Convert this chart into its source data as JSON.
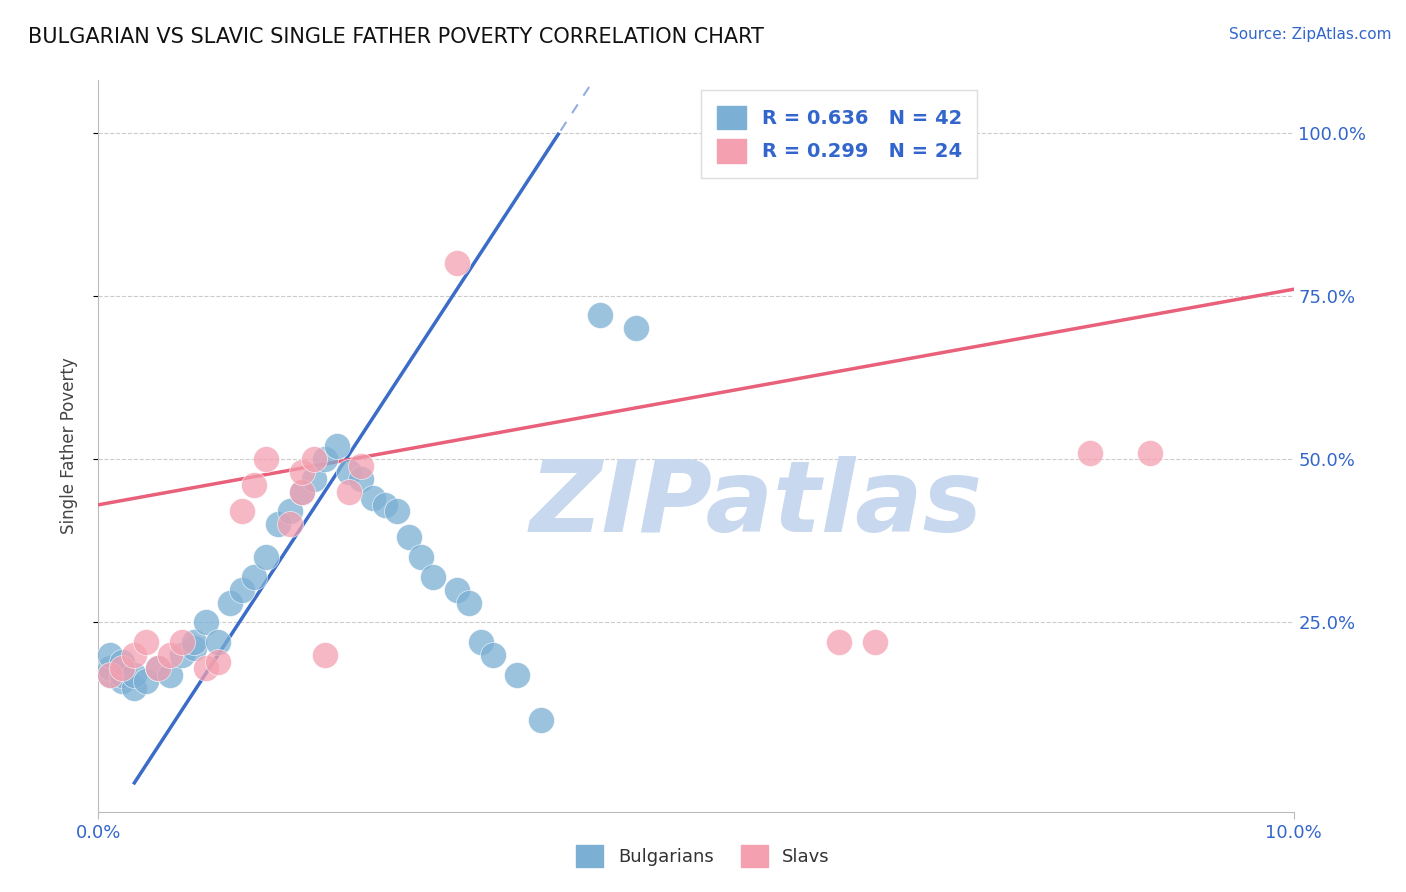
{
  "title": "BULGARIAN VS SLAVIC SINGLE FATHER POVERTY CORRELATION CHART",
  "source_text": "Source: ZipAtlas.com",
  "ylabel": "Single Father Poverty",
  "blue_color": "#7BAFD4",
  "pink_color": "#F4A0B0",
  "blue_line_color": "#3A6CC8",
  "pink_line_color": "#E8607A",
  "bg_color": "#FFFFFF",
  "watermark": "ZIPatlas",
  "watermark_color": "#C8D8EF",
  "legend_top_blue": "R = 0.636   N = 42",
  "legend_top_pink": "R = 0.299   N = 24",
  "legend_bottom_blue": "Bulgarians",
  "legend_bottom_pink": "Slavs",
  "xlim": [
    0.0,
    0.1
  ],
  "ylim": [
    0.0,
    1.05
  ],
  "ytick_vals": [
    0.25,
    0.5,
    0.75,
    1.0
  ],
  "ytick_labels": [
    "25.0%",
    "50.0%",
    "75.0%",
    "100.0%"
  ],
  "xtick_vals": [
    0.0,
    0.1
  ],
  "xtick_labels": [
    "0.0%",
    "10.0%"
  ],
  "blue_regress_slope": 28.0,
  "blue_regress_intercept": -0.08,
  "pink_regress_slope": 3.3,
  "pink_regress_intercept": 0.43,
  "blue_points_x": [
    0.001,
    0.001,
    0.001,
    0.002,
    0.002,
    0.002,
    0.003,
    0.003,
    0.004,
    0.005,
    0.006,
    0.007,
    0.008,
    0.008,
    0.009,
    0.01,
    0.011,
    0.012,
    0.013,
    0.014,
    0.015,
    0.016,
    0.017,
    0.018,
    0.019,
    0.02,
    0.021,
    0.022,
    0.023,
    0.024,
    0.025,
    0.026,
    0.027,
    0.028,
    0.03,
    0.031,
    0.032,
    0.033,
    0.035,
    0.037,
    0.042,
    0.045
  ],
  "blue_points_y": [
    0.17,
    0.18,
    0.2,
    0.16,
    0.17,
    0.19,
    0.15,
    0.17,
    0.16,
    0.18,
    0.17,
    0.2,
    0.21,
    0.22,
    0.25,
    0.22,
    0.28,
    0.3,
    0.32,
    0.35,
    0.4,
    0.42,
    0.45,
    0.47,
    0.5,
    0.52,
    0.48,
    0.47,
    0.44,
    0.43,
    0.42,
    0.38,
    0.35,
    0.32,
    0.3,
    0.28,
    0.22,
    0.2,
    0.17,
    0.1,
    0.72,
    0.7
  ],
  "pink_points_x": [
    0.001,
    0.002,
    0.003,
    0.004,
    0.005,
    0.006,
    0.007,
    0.009,
    0.01,
    0.012,
    0.013,
    0.014,
    0.016,
    0.017,
    0.017,
    0.018,
    0.019,
    0.021,
    0.022,
    0.03,
    0.062,
    0.065,
    0.083,
    0.088
  ],
  "pink_points_y": [
    0.17,
    0.18,
    0.2,
    0.22,
    0.18,
    0.2,
    0.22,
    0.18,
    0.19,
    0.42,
    0.46,
    0.5,
    0.4,
    0.45,
    0.48,
    0.5,
    0.2,
    0.45,
    0.49,
    0.8,
    0.22,
    0.22,
    0.51,
    0.51
  ]
}
